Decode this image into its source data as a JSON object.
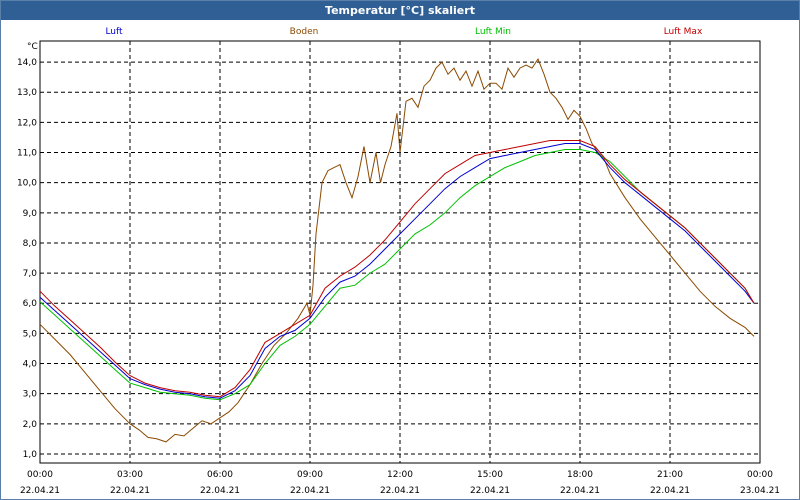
{
  "window": {
    "title": "Temperatur [°C] skaliert"
  },
  "chart_data": {
    "type": "line",
    "title": "Temperatur [°C] skaliert",
    "ylabel": "°C",
    "xlabel": "",
    "ylim": [
      0.7,
      14.7
    ],
    "xlim_hours": [
      0,
      24
    ],
    "grid": true,
    "y_ticks": [
      "1,0",
      "2,0",
      "3,0",
      "4,0",
      "5,0",
      "6,0",
      "7,0",
      "8,0",
      "9,0",
      "10,0",
      "11,0",
      "12,0",
      "13,0",
      "14,0"
    ],
    "x_ticks": [
      {
        "h": 0,
        "time": "00:00",
        "date": "22.04.21"
      },
      {
        "h": 3,
        "time": "03:00",
        "date": "22.04.21"
      },
      {
        "h": 6,
        "time": "06:00",
        "date": "22.04.21"
      },
      {
        "h": 9,
        "time": "09:00",
        "date": "22.04.21"
      },
      {
        "h": 12,
        "time": "12:00",
        "date": "22.04.21"
      },
      {
        "h": 15,
        "time": "15:00",
        "date": "22.04.21"
      },
      {
        "h": 18,
        "time": "18:00",
        "date": "22.04.21"
      },
      {
        "h": 21,
        "time": "21:00",
        "date": "22.04.21"
      },
      {
        "h": 24,
        "time": "00:00",
        "date": "23.04.21"
      }
    ],
    "series": [
      {
        "name": "Boden",
        "color": "#8b4a00",
        "points": [
          [
            0,
            5.3
          ],
          [
            0.5,
            4.8
          ],
          [
            1,
            4.3
          ],
          [
            1.5,
            3.7
          ],
          [
            2,
            3.1
          ],
          [
            2.5,
            2.5
          ],
          [
            3,
            2.0
          ],
          [
            3.3,
            1.8
          ],
          [
            3.6,
            1.55
          ],
          [
            3.9,
            1.5
          ],
          [
            4.2,
            1.4
          ],
          [
            4.5,
            1.65
          ],
          [
            4.8,
            1.6
          ],
          [
            5.1,
            1.85
          ],
          [
            5.4,
            2.1
          ],
          [
            5.7,
            2.0
          ],
          [
            6.0,
            2.2
          ],
          [
            6.3,
            2.4
          ],
          [
            6.6,
            2.7
          ],
          [
            7.0,
            3.3
          ],
          [
            7.4,
            4.0
          ],
          [
            7.8,
            4.6
          ],
          [
            8.2,
            5.0
          ],
          [
            8.6,
            5.5
          ],
          [
            8.9,
            6.0
          ],
          [
            9.0,
            5.6
          ],
          [
            9.1,
            6.6
          ],
          [
            9.2,
            8.3
          ],
          [
            9.4,
            10.0
          ],
          [
            9.6,
            10.4
          ],
          [
            9.8,
            10.5
          ],
          [
            10.0,
            10.6
          ],
          [
            10.2,
            10.0
          ],
          [
            10.4,
            9.5
          ],
          [
            10.6,
            10.2
          ],
          [
            10.8,
            11.2
          ],
          [
            11.0,
            10.0
          ],
          [
            11.2,
            11.0
          ],
          [
            11.35,
            10.0
          ],
          [
            11.5,
            10.6
          ],
          [
            11.7,
            11.2
          ],
          [
            11.9,
            12.3
          ],
          [
            12.0,
            11.0
          ],
          [
            12.2,
            12.7
          ],
          [
            12.4,
            12.8
          ],
          [
            12.6,
            12.5
          ],
          [
            12.8,
            13.2
          ],
          [
            13.0,
            13.4
          ],
          [
            13.2,
            13.8
          ],
          [
            13.4,
            14.0
          ],
          [
            13.6,
            13.6
          ],
          [
            13.8,
            13.8
          ],
          [
            14.0,
            13.4
          ],
          [
            14.2,
            13.7
          ],
          [
            14.4,
            13.2
          ],
          [
            14.6,
            13.7
          ],
          [
            14.8,
            13.1
          ],
          [
            15.0,
            13.3
          ],
          [
            15.2,
            13.3
          ],
          [
            15.4,
            13.1
          ],
          [
            15.6,
            13.8
          ],
          [
            15.8,
            13.5
          ],
          [
            16.0,
            13.8
          ],
          [
            16.2,
            13.9
          ],
          [
            16.4,
            13.8
          ],
          [
            16.6,
            14.1
          ],
          [
            16.8,
            13.6
          ],
          [
            17.0,
            13.0
          ],
          [
            17.2,
            12.8
          ],
          [
            17.4,
            12.5
          ],
          [
            17.6,
            12.1
          ],
          [
            17.8,
            12.4
          ],
          [
            18.0,
            12.2
          ],
          [
            18.2,
            11.8
          ],
          [
            18.4,
            11.3
          ],
          [
            18.6,
            11.0
          ],
          [
            18.8,
            10.8
          ],
          [
            19.0,
            10.3
          ],
          [
            19.5,
            9.5
          ],
          [
            20.0,
            8.8
          ],
          [
            20.5,
            8.2
          ],
          [
            21.0,
            7.6
          ],
          [
            21.5,
            7.0
          ],
          [
            22.0,
            6.4
          ],
          [
            22.5,
            5.9
          ],
          [
            23.0,
            5.5
          ],
          [
            23.5,
            5.2
          ],
          [
            23.8,
            4.9
          ]
        ]
      },
      {
        "name": "Luft Min",
        "color": "#00c000",
        "points": [
          [
            0,
            6.05
          ],
          [
            0.5,
            5.6
          ],
          [
            1,
            5.15
          ],
          [
            1.5,
            4.7
          ],
          [
            2,
            4.25
          ],
          [
            2.5,
            3.8
          ],
          [
            3,
            3.35
          ],
          [
            3.5,
            3.2
          ],
          [
            4,
            3.05
          ],
          [
            4.5,
            3.0
          ],
          [
            5,
            2.95
          ],
          [
            5.5,
            2.85
          ],
          [
            6,
            2.8
          ],
          [
            6.5,
            3.0
          ],
          [
            7,
            3.3
          ],
          [
            7.5,
            4.0
          ],
          [
            8,
            4.6
          ],
          [
            8.5,
            4.9
          ],
          [
            9,
            5.3
          ],
          [
            9.5,
            5.9
          ],
          [
            10,
            6.5
          ],
          [
            10.5,
            6.6
          ],
          [
            11,
            7.0
          ],
          [
            11.5,
            7.3
          ],
          [
            12,
            7.8
          ],
          [
            12.5,
            8.3
          ],
          [
            13,
            8.6
          ],
          [
            13.5,
            9.0
          ],
          [
            14,
            9.5
          ],
          [
            14.5,
            9.9
          ],
          [
            15,
            10.2
          ],
          [
            15.5,
            10.5
          ],
          [
            16,
            10.7
          ],
          [
            16.5,
            10.9
          ],
          [
            17,
            11.0
          ],
          [
            17.5,
            11.1
          ],
          [
            18,
            11.1
          ],
          [
            18.5,
            11.0
          ],
          [
            19,
            10.7
          ],
          [
            19.5,
            10.2
          ],
          [
            20,
            9.7
          ],
          [
            20.5,
            9.3
          ],
          [
            21,
            8.9
          ],
          [
            21.5,
            8.5
          ],
          [
            22,
            8.0
          ],
          [
            22.5,
            7.5
          ],
          [
            23,
            7.0
          ],
          [
            23.5,
            6.5
          ],
          [
            23.8,
            6.0
          ]
        ]
      },
      {
        "name": "Luft",
        "color": "#0000d0",
        "points": [
          [
            0,
            6.2
          ],
          [
            0.5,
            5.75
          ],
          [
            1,
            5.3
          ],
          [
            1.5,
            4.85
          ],
          [
            2,
            4.4
          ],
          [
            2.5,
            3.95
          ],
          [
            3,
            3.5
          ],
          [
            3.5,
            3.3
          ],
          [
            4,
            3.15
          ],
          [
            4.5,
            3.05
          ],
          [
            5,
            3.0
          ],
          [
            5.5,
            2.9
          ],
          [
            6,
            2.85
          ],
          [
            6.5,
            3.1
          ],
          [
            7,
            3.6
          ],
          [
            7.5,
            4.5
          ],
          [
            8,
            4.9
          ],
          [
            8.5,
            5.1
          ],
          [
            9,
            5.5
          ],
          [
            9.5,
            6.2
          ],
          [
            10,
            6.7
          ],
          [
            10.5,
            6.9
          ],
          [
            11,
            7.3
          ],
          [
            11.5,
            7.8
          ],
          [
            12,
            8.3
          ],
          [
            12.5,
            8.8
          ],
          [
            13,
            9.3
          ],
          [
            13.5,
            9.8
          ],
          [
            14,
            10.2
          ],
          [
            14.5,
            10.5
          ],
          [
            15,
            10.8
          ],
          [
            15.5,
            10.9
          ],
          [
            16,
            11.0
          ],
          [
            16.5,
            11.1
          ],
          [
            17,
            11.2
          ],
          [
            17.5,
            11.3
          ],
          [
            18,
            11.3
          ],
          [
            18.5,
            11.1
          ],
          [
            19,
            10.5
          ],
          [
            19.5,
            10.0
          ],
          [
            20,
            9.6
          ],
          [
            20.5,
            9.2
          ],
          [
            21,
            8.8
          ],
          [
            21.5,
            8.4
          ],
          [
            22,
            7.9
          ],
          [
            22.5,
            7.4
          ],
          [
            23,
            6.9
          ],
          [
            23.5,
            6.4
          ],
          [
            23.8,
            6.0
          ]
        ]
      },
      {
        "name": "Luft Max",
        "color": "#c00000",
        "points": [
          [
            0,
            6.4
          ],
          [
            0.5,
            5.9
          ],
          [
            1,
            5.45
          ],
          [
            1.5,
            5.0
          ],
          [
            2,
            4.55
          ],
          [
            2.5,
            4.05
          ],
          [
            3,
            3.6
          ],
          [
            3.5,
            3.35
          ],
          [
            4,
            3.2
          ],
          [
            4.5,
            3.1
          ],
          [
            5,
            3.05
          ],
          [
            5.5,
            2.95
          ],
          [
            6,
            2.9
          ],
          [
            6.5,
            3.2
          ],
          [
            7,
            3.8
          ],
          [
            7.5,
            4.7
          ],
          [
            8,
            5.0
          ],
          [
            8.5,
            5.3
          ],
          [
            9,
            5.6
          ],
          [
            9.5,
            6.5
          ],
          [
            10,
            6.9
          ],
          [
            10.5,
            7.2
          ],
          [
            11,
            7.6
          ],
          [
            11.5,
            8.1
          ],
          [
            12,
            8.7
          ],
          [
            12.5,
            9.3
          ],
          [
            13,
            9.8
          ],
          [
            13.5,
            10.3
          ],
          [
            14,
            10.6
          ],
          [
            14.5,
            10.9
          ],
          [
            15,
            11.0
          ],
          [
            15.5,
            11.1
          ],
          [
            16,
            11.2
          ],
          [
            16.5,
            11.3
          ],
          [
            17,
            11.4
          ],
          [
            17.5,
            11.4
          ],
          [
            18,
            11.4
          ],
          [
            18.5,
            11.2
          ],
          [
            19,
            10.6
          ],
          [
            19.5,
            10.1
          ],
          [
            20,
            9.7
          ],
          [
            20.5,
            9.3
          ],
          [
            21,
            8.9
          ],
          [
            21.5,
            8.5
          ],
          [
            22,
            8.0
          ],
          [
            22.5,
            7.5
          ],
          [
            23,
            7.0
          ],
          [
            23.5,
            6.5
          ],
          [
            23.8,
            6.0
          ]
        ]
      }
    ]
  }
}
